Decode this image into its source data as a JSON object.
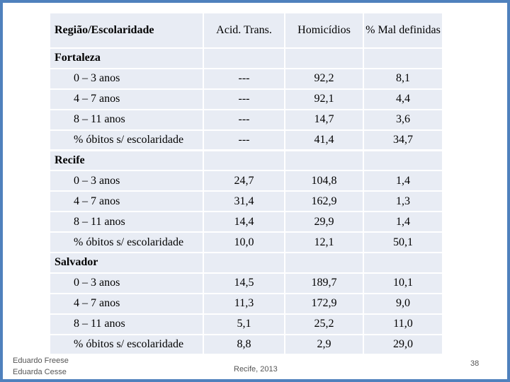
{
  "header": {
    "columns": [
      "Região/Escolaridade",
      "Acid. Trans.",
      "Homicídios",
      "% Mal definidas"
    ]
  },
  "groups": [
    {
      "name": "Fortaleza",
      "rows": [
        {
          "label": "0 – 3 anos",
          "values": [
            "---",
            "92,2",
            "8,1"
          ]
        },
        {
          "label": "4 – 7 anos",
          "values": [
            "---",
            "92,1",
            "4,4"
          ]
        },
        {
          "label": "8 – 11 anos",
          "values": [
            "---",
            "14,7",
            "3,6"
          ]
        },
        {
          "label": "% óbitos s/ escolaridade",
          "values": [
            "---",
            "41,4",
            "34,7"
          ]
        }
      ]
    },
    {
      "name": "Recife",
      "rows": [
        {
          "label": "0 – 3 anos",
          "values": [
            "24,7",
            "104,8",
            "1,4"
          ]
        },
        {
          "label": "4 – 7 anos",
          "values": [
            "31,4",
            "162,9",
            "1,3"
          ]
        },
        {
          "label": "8 – 11 anos",
          "values": [
            "14,4",
            "29,9",
            "1,4"
          ]
        },
        {
          "label": "% óbitos s/ escolaridade",
          "values": [
            "10,0",
            "12,1",
            "50,1"
          ]
        }
      ]
    },
    {
      "name": "Salvador",
      "rows": [
        {
          "label": "0 – 3 anos",
          "values": [
            "14,5",
            "189,7",
            "10,1"
          ]
        },
        {
          "label": "4 – 7 anos",
          "values": [
            "11,3",
            "172,9",
            "9,0"
          ]
        },
        {
          "label": "8 – 11 anos",
          "values": [
            "5,1",
            "25,2",
            "11,0"
          ]
        },
        {
          "label": "% óbitos s/ escolaridade",
          "values": [
            "8,8",
            "2,9",
            "29,0"
          ]
        }
      ]
    }
  ],
  "footer": {
    "authors": [
      "Eduardo Freese",
      "Eduarda Cesse"
    ],
    "place_date": "Recife, 2013",
    "page": "38"
  }
}
